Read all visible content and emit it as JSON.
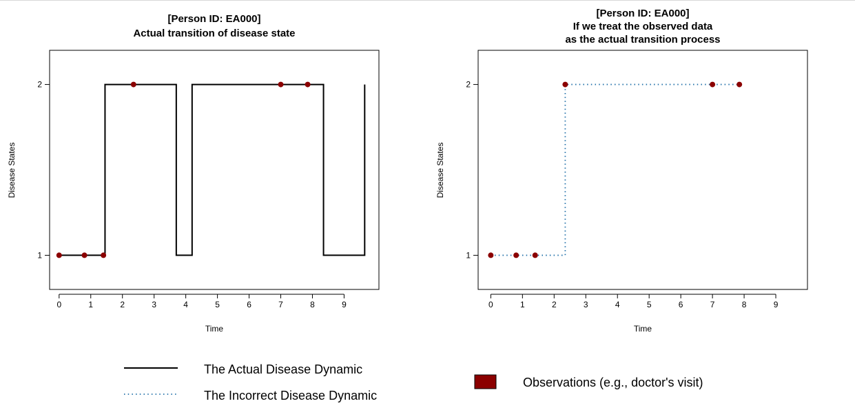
{
  "chart_data": [
    {
      "type": "line",
      "title": "[Person ID: EA000]",
      "subtitle": "Actual transition of disease state",
      "xlabel": "Time",
      "ylabel": "Disease States",
      "xlim": [
        -0.3,
        10.1
      ],
      "ylim": [
        0.8,
        2.2
      ],
      "xticks": [
        0,
        1,
        2,
        3,
        4,
        5,
        6,
        7,
        8,
        9
      ],
      "yticks": [
        1,
        2
      ],
      "grid": false,
      "series": [
        {
          "name": "The Actual Disease Dynamic",
          "style": "step-solid",
          "color": "#000000",
          "x": [
            0,
            1.45,
            3.7,
            4.2,
            8.35,
            9.65
          ],
          "y": [
            1,
            2,
            1,
            2,
            1,
            2
          ]
        },
        {
          "name": "Observations (e.g., doctor's visit)",
          "style": "points",
          "color": "#8b0000",
          "x": [
            0,
            0.8,
            1.4,
            2.35,
            7.0,
            7.85
          ],
          "y": [
            1,
            1,
            1,
            2,
            2,
            2
          ]
        }
      ]
    },
    {
      "type": "line",
      "title": "[Person ID: EA000]",
      "subtitle_lines": [
        "If we treat the observed data",
        "as the actual transition process"
      ],
      "xlabel": "Time",
      "ylabel": "Disease States",
      "xlim": [
        -0.4,
        10.0
      ],
      "ylim": [
        0.8,
        2.2
      ],
      "xticks": [
        0,
        1,
        2,
        3,
        4,
        5,
        6,
        7,
        8,
        9
      ],
      "yticks": [
        1,
        2
      ],
      "grid": false,
      "series": [
        {
          "name": "The Incorrect Disease Dynamic",
          "style": "step-dotted",
          "color": "#1f6fa8",
          "x": [
            0,
            0.8,
            1.4,
            2.35,
            7.0,
            7.85
          ],
          "y": [
            1,
            1,
            1,
            2,
            2,
            2
          ]
        },
        {
          "name": "Observations (e.g., doctor's visit)",
          "style": "points",
          "color": "#8b0000",
          "x": [
            0,
            0.8,
            1.4,
            2.35,
            7.0,
            7.85
          ],
          "y": [
            1,
            1,
            1,
            2,
            2,
            2
          ]
        }
      ]
    }
  ],
  "legend": {
    "actual": "The Actual Disease Dynamic",
    "incorrect": "The Incorrect Disease Dynamic",
    "observations": "Observations (e.g., doctor's visit)",
    "colors": {
      "actual": "#000000",
      "incorrect": "#1f6fa8",
      "observations": "#8b0000"
    }
  }
}
